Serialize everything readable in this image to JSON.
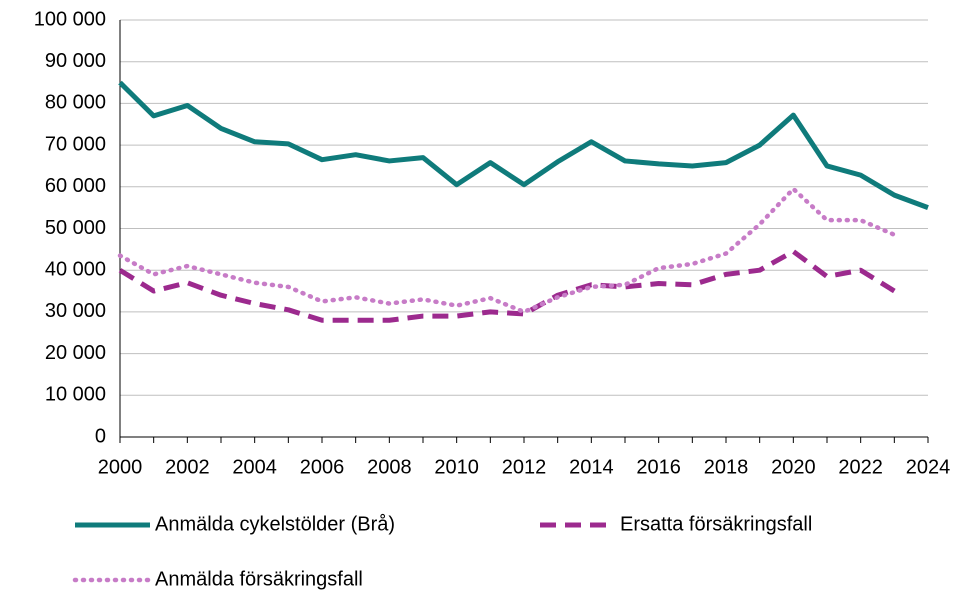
{
  "chart_data": {
    "type": "line",
    "x": [
      2000,
      2001,
      2002,
      2003,
      2004,
      2005,
      2006,
      2007,
      2008,
      2009,
      2010,
      2011,
      2012,
      2013,
      2014,
      2015,
      2016,
      2017,
      2018,
      2019,
      2020,
      2021,
      2022,
      2023,
      2024
    ],
    "series": [
      {
        "name": "Anmälda cykelstölder (Brå)",
        "color": "#0f7b7b",
        "style": "solid",
        "values": [
          85000,
          77000,
          79500,
          74000,
          70800,
          70300,
          66500,
          67700,
          66200,
          67000,
          60500,
          65800,
          60500,
          66000,
          70800,
          66200,
          65500,
          65000,
          65800,
          70000,
          77200,
          65000,
          62800,
          58000,
          55000
        ]
      },
      {
        "name": "Ersatta försäkringsfall",
        "color": "#9c2a8e",
        "style": "dashed",
        "values": [
          40000,
          35000,
          37000,
          34000,
          32000,
          30500,
          28000,
          28000,
          28000,
          29000,
          29000,
          30000,
          29500,
          34000,
          36500,
          36000,
          36800,
          36500,
          39000,
          40000,
          44500,
          38500,
          40000,
          35000,
          null
        ]
      },
      {
        "name": "Anmälda försäkringsfall",
        "color": "#c77cc7",
        "style": "dotted",
        "values": [
          43500,
          39000,
          41000,
          39000,
          37000,
          36000,
          32500,
          33500,
          32000,
          33000,
          31500,
          33300,
          30000,
          33500,
          36000,
          36500,
          40500,
          41500,
          44000,
          51000,
          59500,
          52000,
          52000,
          48500,
          null
        ]
      }
    ],
    "xlim": [
      2000,
      2024
    ],
    "xticks": [
      2000,
      2002,
      2004,
      2006,
      2008,
      2010,
      2012,
      2014,
      2016,
      2018,
      2020,
      2022,
      2024
    ],
    "ylim": [
      0,
      100000
    ],
    "yticks": [
      0,
      {
        "value": 10000,
        "label": "10 000"
      },
      {
        "value": 20000,
        "label": "20 000"
      },
      {
        "value": 30000,
        "label": "30 000"
      },
      {
        "value": 40000,
        "label": "40 000"
      },
      {
        "value": 50000,
        "label": "50 000"
      },
      {
        "value": 60000,
        "label": "60 000"
      },
      {
        "value": 70000,
        "label": "70 000"
      },
      {
        "value": 80000,
        "label": "80 000"
      },
      {
        "value": 90000,
        "label": "90 000"
      },
      {
        "value": 100000,
        "label": "100 000"
      }
    ],
    "grid": true
  }
}
